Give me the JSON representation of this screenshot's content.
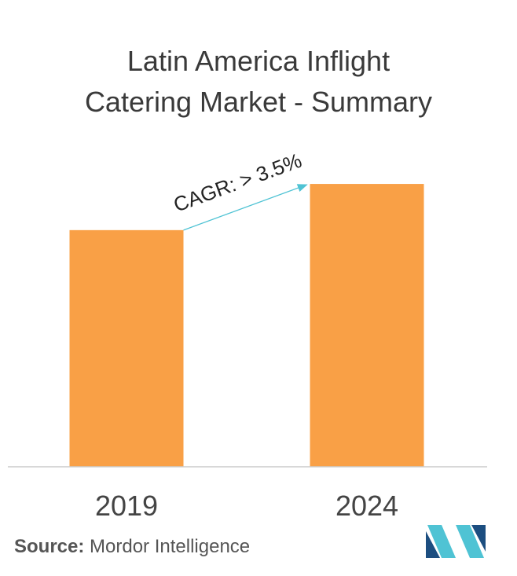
{
  "title_line1": "Latin America Inflight",
  "title_line2": "Catering Market - Summary",
  "source_label": "Source:",
  "source_value": "Mordor Intelligence",
  "colors": {
    "bar": "#F9A046",
    "arrow": "#4FC3D4",
    "axis": "#cccccc",
    "text": "#3a3a3a",
    "logo_dark": "#1C4E80",
    "logo_light": "#4FC3D4"
  },
  "chart_data": {
    "type": "bar",
    "categories": [
      "2019",
      "2024"
    ],
    "values": [
      0.82,
      0.98
    ],
    "annotation": "CAGR: > 3.5%",
    "ylim": [
      0,
      1.1
    ],
    "grid": false
  }
}
